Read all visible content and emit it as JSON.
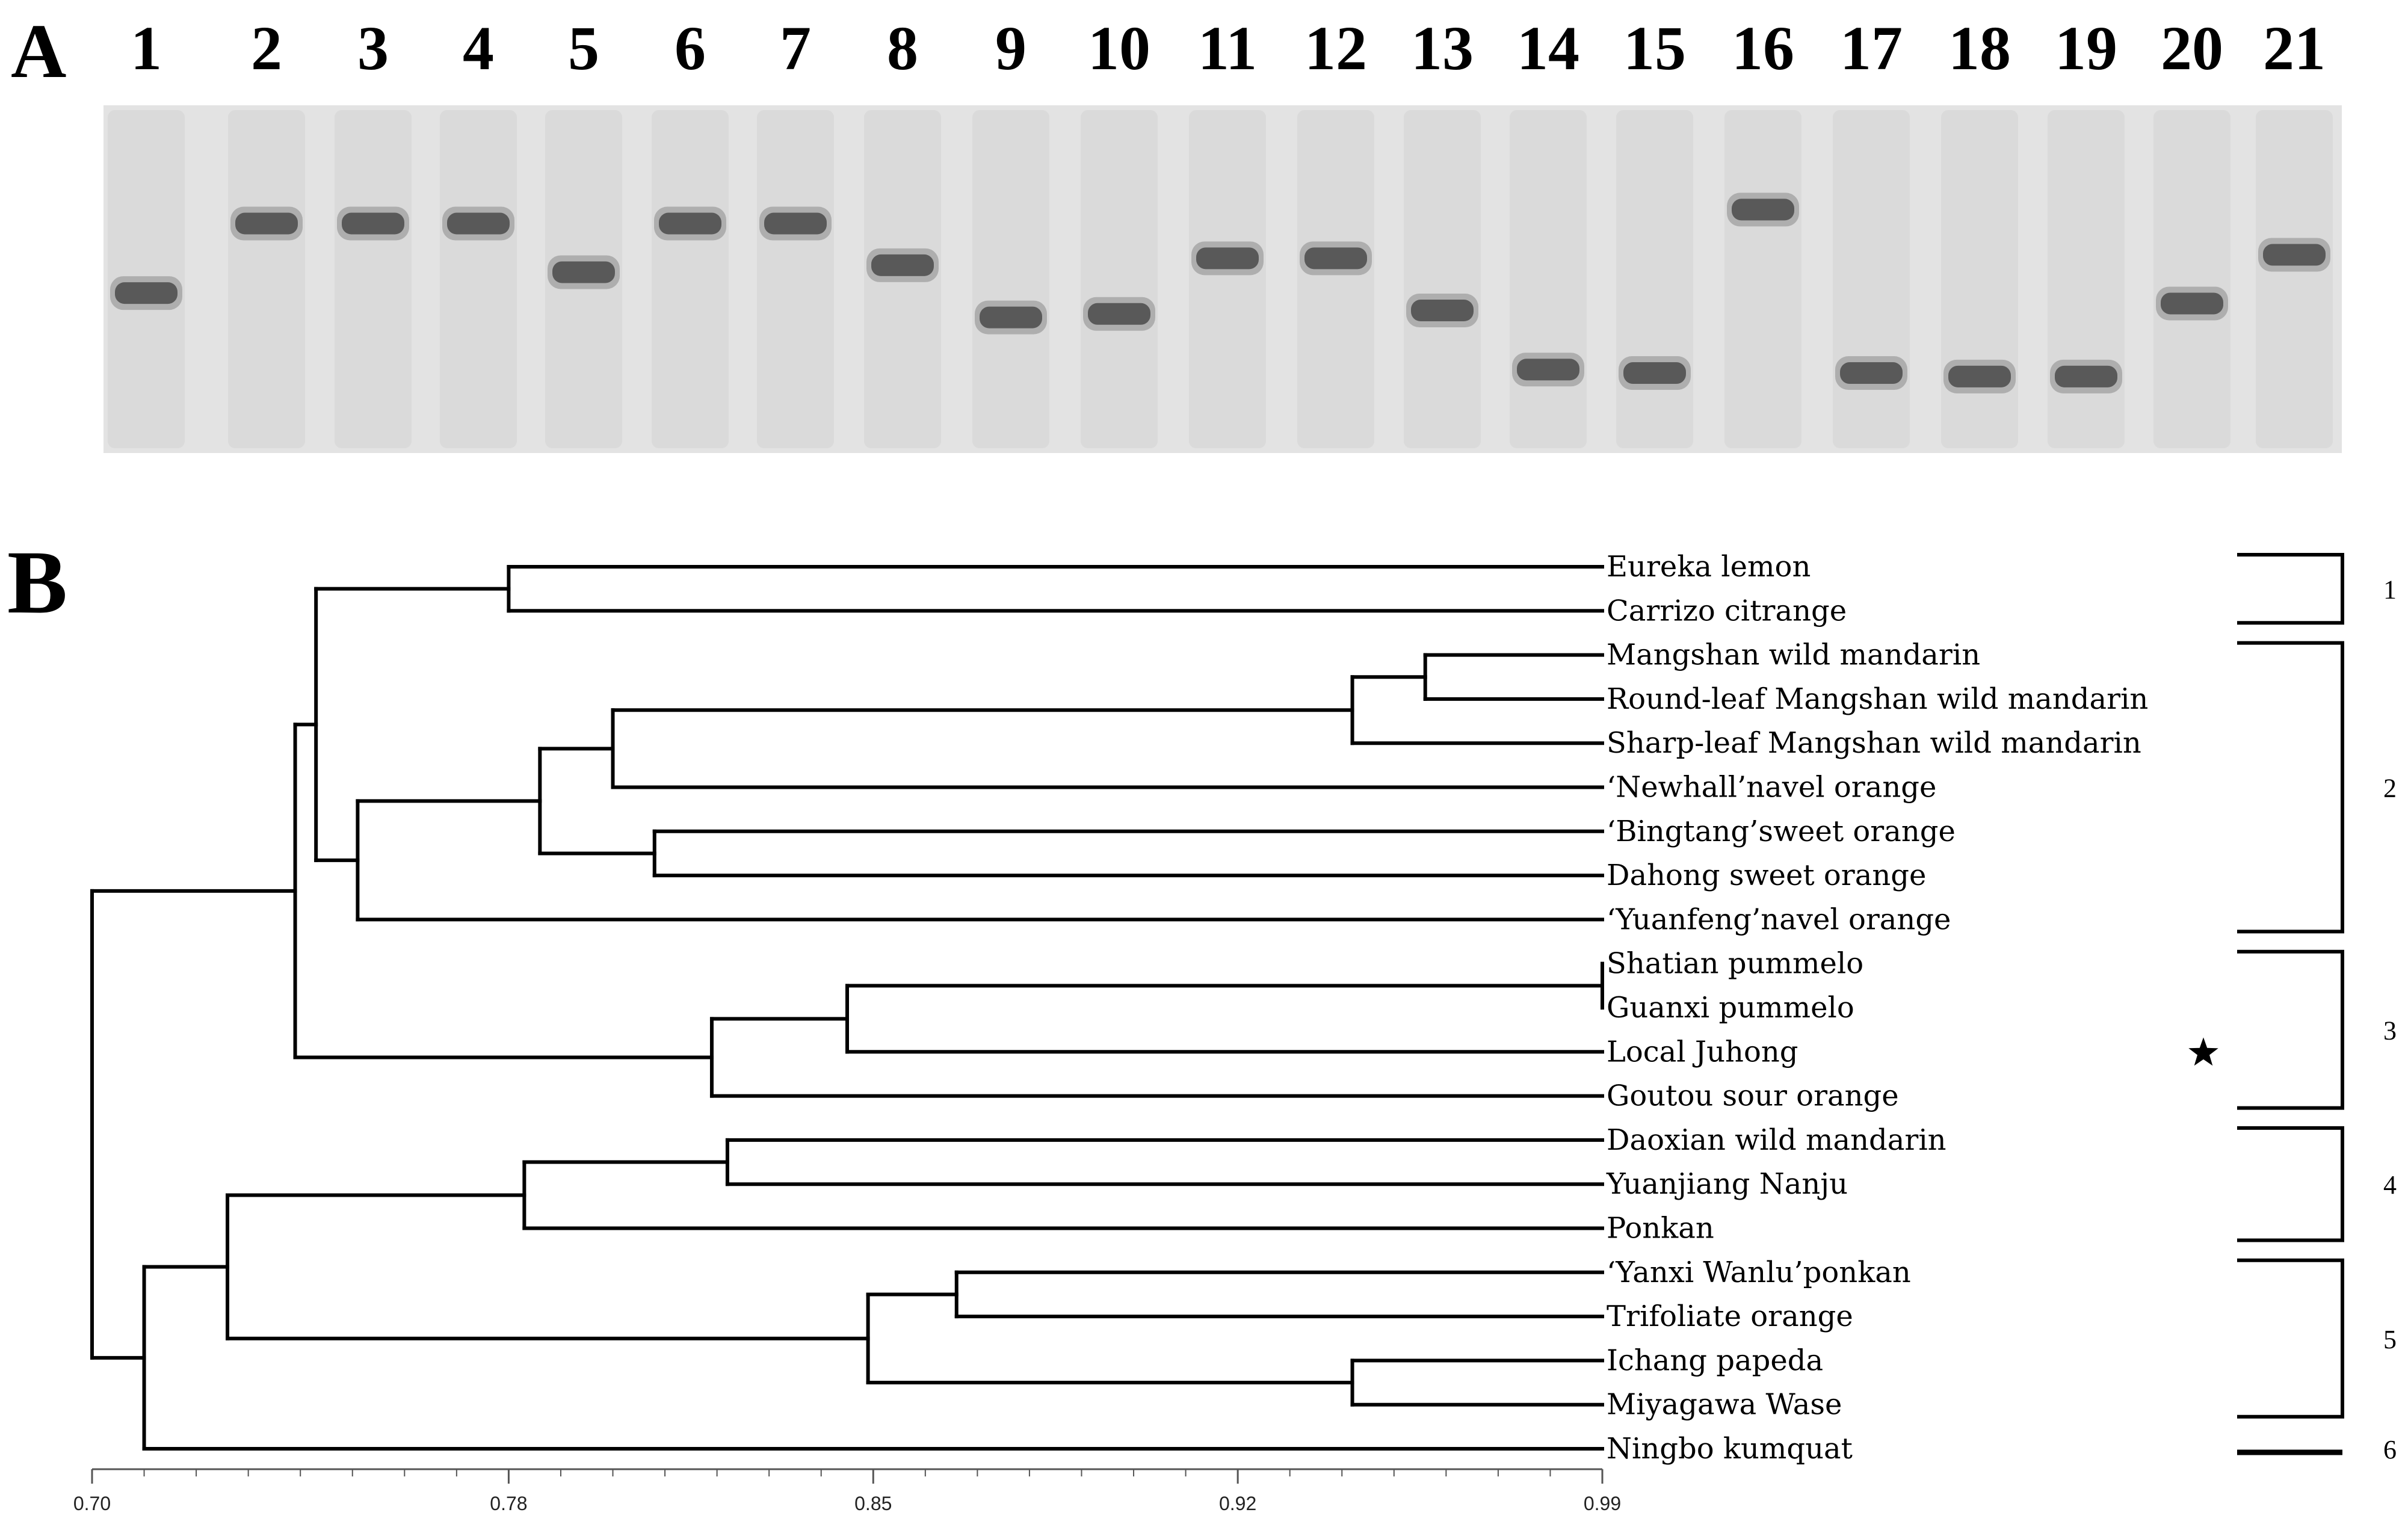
{
  "panel_a": {
    "label": "A",
    "lanes": [
      {
        "label": "1",
        "band": 0.54
      },
      {
        "label": "2",
        "band": 0.34
      },
      {
        "label": "3",
        "band": 0.34
      },
      {
        "label": "4",
        "band": 0.34
      },
      {
        "label": "5",
        "band": 0.48
      },
      {
        "label": "6",
        "band": 0.34
      },
      {
        "label": "7",
        "band": 0.34
      },
      {
        "label": "8",
        "band": 0.46
      },
      {
        "label": "9",
        "band": 0.61
      },
      {
        "label": "10",
        "band": 0.6
      },
      {
        "label": "11",
        "band": 0.44
      },
      {
        "label": "12",
        "band": 0.44
      },
      {
        "label": "13",
        "band": 0.59
      },
      {
        "label": "14",
        "band": 0.76
      },
      {
        "label": "15",
        "band": 0.77
      },
      {
        "label": "16",
        "band": 0.3
      },
      {
        "label": "17",
        "band": 0.77
      },
      {
        "label": "18",
        "band": 0.78
      },
      {
        "label": "19",
        "band": 0.78
      },
      {
        "label": "20",
        "band": 0.57
      },
      {
        "label": "21",
        "band": 0.43
      }
    ]
  },
  "panel_b": {
    "label": "B",
    "axis": {
      "min": 0.7,
      "max": 0.99,
      "tick_labels": [
        "0.70",
        "0.78",
        "0.85",
        "0.92",
        "0.99"
      ],
      "tick_values": [
        0.7,
        0.78,
        0.85,
        0.92,
        0.99
      ],
      "minor_step": 0.01
    },
    "taxa": [
      "Eureka lemon",
      "Carrizo citrange",
      "Mangshan wild mandarin",
      "Round-leaf Mangshan wild mandarin",
      "Sharp-leaf Mangshan wild mandarin",
      "‘Newhall’navel orange",
      "‘Bingtang’sweet orange",
      "Dahong sweet orange",
      "‘Yuanfeng’navel orange",
      "Shatian pummelo",
      "Guanxi pummelo",
      "Local Juhong",
      "Goutou sour orange",
      "Daoxian wild mandarin",
      "Yuanjiang Nanju",
      "Ponkan",
      "‘Yanxi Wanlu’ponkan",
      "Trifoliate orange",
      "Ichang papeda",
      "Miyagawa Wase",
      "Ningbo kumquat"
    ],
    "marked_taxon_index": 11,
    "marker_icon": "star-icon",
    "groups": [
      {
        "label": "1",
        "from": 0,
        "to": 1
      },
      {
        "label": "2",
        "from": 2,
        "to": 8
      },
      {
        "label": "3",
        "from": 9,
        "to": 12
      },
      {
        "label": "4",
        "from": 13,
        "to": 15
      },
      {
        "label": "5",
        "from": 16,
        "to": 19
      },
      {
        "label": "6",
        "from": 20,
        "to": 20
      }
    ],
    "tree": {
      "s": 0.7,
      "c": [
        {
          "s": 0.71,
          "c": [
            {
              "s": 0.726,
              "c": [
                {
                  "s": 0.783,
                  "c": [
                    {
                      "s": 0.822,
                      "c": [
                        {
                          "t": 13
                        },
                        {
                          "t": 14
                        }
                      ]
                    },
                    {
                      "t": 15
                    }
                  ]
                },
                {
                  "s": 0.849,
                  "c": [
                    {
                      "s": 0.866,
                      "c": [
                        {
                          "t": 16
                        },
                        {
                          "t": 17
                        }
                      ]
                    },
                    {
                      "s": 0.942,
                      "c": [
                        {
                          "t": 18
                        },
                        {
                          "t": 19
                        }
                      ]
                    }
                  ]
                }
              ]
            },
            {
              "t": 20
            }
          ]
        },
        {
          "s": 0.739,
          "c": [
            {
              "s": 0.743,
              "c": [
                {
                  "s": 0.78,
                  "c": [
                    {
                      "t": 0
                    },
                    {
                      "t": 1
                    }
                  ]
                },
                {
                  "s": 0.751,
                  "c": [
                    {
                      "s": 0.786,
                      "c": [
                        {
                          "s": 0.8,
                          "c": [
                            {
                              "s": 0.942,
                              "c": [
                                {
                                  "s": 0.956,
                                  "c": [
                                    {
                                      "t": 2
                                    },
                                    {
                                      "t": 3
                                    }
                                  ]
                                },
                                {
                                  "t": 4
                                }
                              ]
                            },
                            {
                              "t": 5
                            }
                          ]
                        },
                        {
                          "s": 0.808,
                          "c": [
                            {
                              "t": 6
                            },
                            {
                              "t": 7
                            }
                          ]
                        }
                      ]
                    },
                    {
                      "t": 8
                    }
                  ]
                }
              ]
            },
            {
              "s": 0.819,
              "c": [
                {
                  "s": 0.845,
                  "c": [
                    {
                      "s": 0.99,
                      "c": [
                        {
                          "t": 9
                        },
                        {
                          "t": 10
                        }
                      ]
                    },
                    {
                      "t": 11
                    }
                  ]
                },
                {
                  "t": 12
                }
              ]
            }
          ]
        }
      ]
    }
  }
}
